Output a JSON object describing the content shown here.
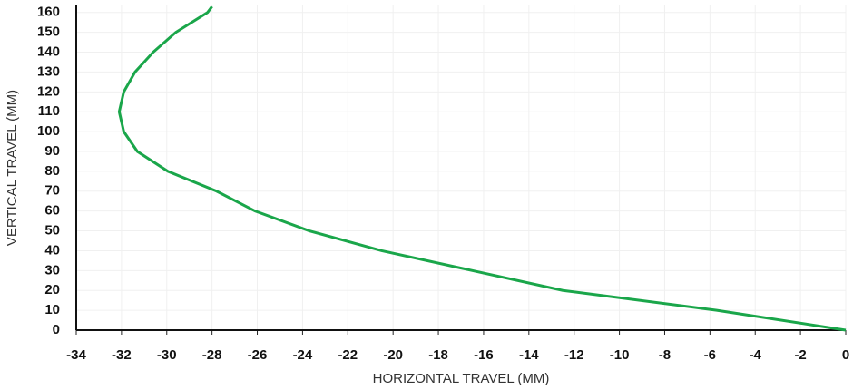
{
  "chart_data": {
    "type": "line",
    "x_label": "HORIZONTAL TRAVEL (MM)",
    "y_label": "VERTICAL TRAVEL (MM)",
    "x": [
      0,
      -5.7,
      -12.5,
      -16.5,
      -20.5,
      -23.7,
      -26.1,
      -27.8,
      -29.95,
      -31.3,
      -31.9,
      -32.1,
      -31.9,
      -31.4,
      -30.6,
      -29.6,
      -28.2,
      -28
    ],
    "series": [
      {
        "color": "#1aa64a",
        "values": [
          0,
          10,
          20,
          30,
          40,
          50,
          60,
          70,
          80,
          90,
          100,
          110,
          120,
          130,
          140,
          150,
          160,
          163
        ]
      }
    ],
    "xlim": [
      -34,
      0
    ],
    "xticks": [
      -34,
      -32,
      -30,
      -28,
      -26,
      -24,
      -22,
      -20,
      -18,
      -16,
      -14,
      -12,
      -10,
      -8,
      -6,
      -4,
      -2,
      0
    ],
    "ylim": [
      0,
      164
    ],
    "yticks": [
      0,
      10,
      20,
      30,
      40,
      50,
      60,
      70,
      80,
      90,
      100,
      110,
      120,
      130,
      140,
      150,
      160
    ],
    "grid": true
  }
}
